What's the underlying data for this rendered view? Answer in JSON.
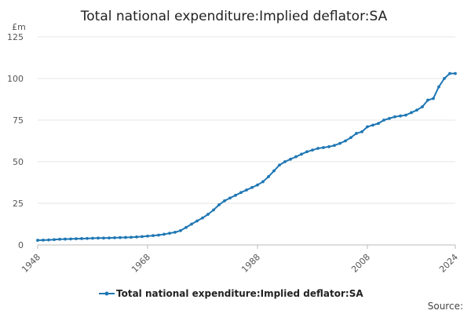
{
  "chart_data": {
    "type": "line",
    "title": "Total national expenditure:Implied deflator:SA",
    "unit_label": "£m",
    "ylabel": "£m",
    "xlabel": "",
    "ylim": [
      0,
      125
    ],
    "y_ticks": [
      "0",
      "25",
      "50",
      "75",
      "100",
      "125"
    ],
    "x_ticks": [
      "1948",
      "1968",
      "1988",
      "2008",
      "2024"
    ],
    "xlim": [
      1948,
      2024
    ],
    "grid": true,
    "legend_position": "bottom",
    "source_label": "Source:",
    "series": [
      {
        "name": "Total national expenditure:Implied deflator:SA",
        "color": "#1f77b4",
        "x": [
          1948,
          1949,
          1950,
          1951,
          1952,
          1953,
          1954,
          1955,
          1956,
          1957,
          1958,
          1959,
          1960,
          1961,
          1962,
          1963,
          1964,
          1965,
          1966,
          1967,
          1968,
          1969,
          1970,
          1971,
          1972,
          1973,
          1974,
          1975,
          1976,
          1977,
          1978,
          1979,
          1980,
          1981,
          1982,
          1983,
          1984,
          1985,
          1986,
          1987,
          1988,
          1989,
          1990,
          1991,
          1992,
          1993,
          1994,
          1995,
          1996,
          1997,
          1998,
          1999,
          2000,
          2001,
          2002,
          2003,
          2004,
          2005,
          2006,
          2007,
          2008,
          2009,
          2010,
          2011,
          2012,
          2013,
          2014,
          2015,
          2016,
          2017,
          2018,
          2019,
          2020,
          2021,
          2022,
          2023,
          2024
        ],
        "values": [
          2.8,
          2.9,
          3.0,
          3.2,
          3.4,
          3.5,
          3.6,
          3.7,
          3.8,
          3.9,
          4.0,
          4.1,
          4.1,
          4.2,
          4.3,
          4.4,
          4.5,
          4.6,
          4.8,
          5.0,
          5.3,
          5.6,
          5.9,
          6.4,
          7.0,
          7.6,
          8.6,
          10.5,
          12.5,
          14.4,
          16.2,
          18.4,
          21.0,
          24.1,
          26.5,
          28.2,
          29.8,
          31.5,
          33.0,
          34.5,
          36.0,
          38.0,
          41.0,
          44.5,
          48.0,
          50.0,
          51.5,
          53.0,
          54.5,
          56.0,
          57.0,
          58.0,
          58.5,
          59.0,
          59.8,
          61.0,
          62.5,
          64.5,
          67.0,
          68.0,
          71.0,
          72.0,
          73.0,
          75.0,
          76.0,
          77.0,
          77.5,
          78.0,
          79.5,
          81.0,
          83.0,
          87.0,
          88.0,
          95.0,
          100.0,
          103.0,
          103.0
        ]
      }
    ]
  }
}
